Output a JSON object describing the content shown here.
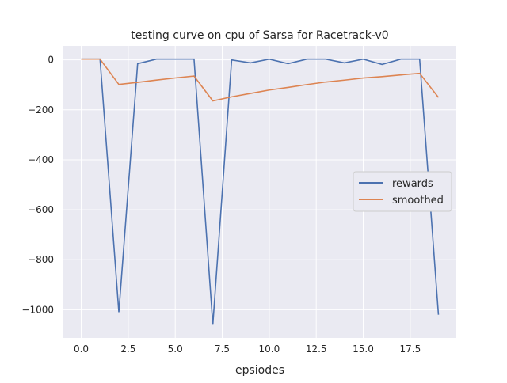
{
  "chart_data": {
    "type": "line",
    "title": "testing curve on cpu of Sarsa for Racetrack-v0",
    "xlabel": "epsiodes",
    "ylabel": "",
    "xlim": [
      -0.95,
      19.95
    ],
    "ylim": [
      -1113,
      56
    ],
    "xticks": [
      0,
      2.5,
      5,
      7.5,
      10,
      12.5,
      15,
      17.5
    ],
    "xtick_labels": [
      "0.0",
      "2.5",
      "5.0",
      "7.5",
      "10.0",
      "12.5",
      "15.0",
      "17.5"
    ],
    "yticks": [
      0,
      -200,
      -400,
      -600,
      -800,
      -1000
    ],
    "ytick_labels": [
      "0",
      "−200",
      "−400",
      "−600",
      "−800",
      "−1000"
    ],
    "grid": true,
    "legend_position": "center-right",
    "x": [
      0,
      1,
      2,
      3,
      4,
      5,
      6,
      7,
      8,
      9,
      10,
      11,
      12,
      13,
      14,
      15,
      16,
      17,
      18,
      19
    ],
    "series": [
      {
        "name": "rewards",
        "color": "#4c72b0",
        "values": [
          3,
          3,
          -1010,
          -15,
          3,
          3,
          3,
          -1060,
          0,
          -12,
          3,
          -15,
          3,
          3,
          -12,
          3,
          -18,
          3,
          3,
          -1020
        ]
      },
      {
        "name": "smoothed",
        "color": "#dd8452",
        "values": [
          3,
          3,
          -98.3,
          -90,
          -80.7,
          -72.3,
          -64.8,
          -164.3,
          -147.9,
          -134.3,
          -120.6,
          -110.1,
          -98.8,
          -88.6,
          -81,
          -72.6,
          -67.1,
          -60.1,
          -53.8,
          -150.4
        ]
      }
    ]
  }
}
